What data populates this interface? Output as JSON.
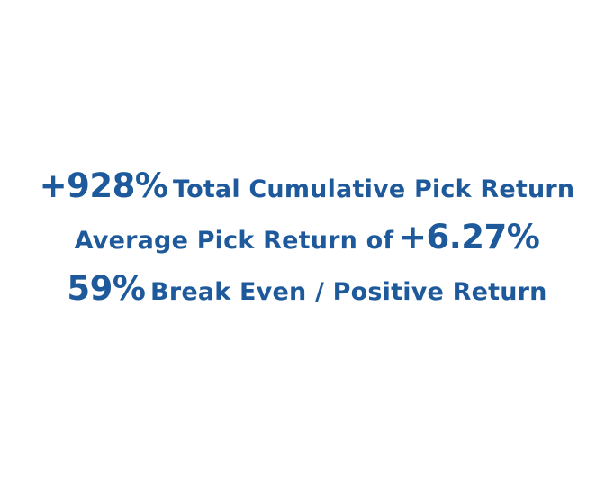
{
  "colors": {
    "text": "#1e5a9b",
    "background": "#ffffff"
  },
  "stats": [
    {
      "value": "+928%",
      "label": "Total Cumulative Pick Return"
    },
    {
      "label": "Average Pick Return of",
      "value": "+6.27%"
    },
    {
      "value": "59%",
      "label": "Break Even / Positive Return"
    }
  ]
}
